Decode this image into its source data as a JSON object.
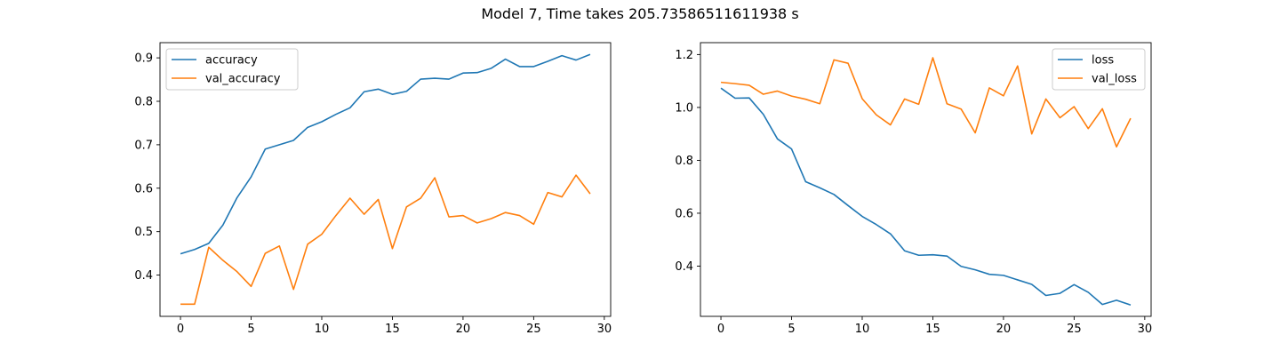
{
  "figure": {
    "title": "Model 7, Time takes 205.73586511611938 s"
  },
  "chart_data": [
    {
      "type": "line",
      "title": "",
      "xlabel": "",
      "ylabel": "",
      "xlim": [
        -1.45,
        30.45
      ],
      "ylim": [
        0.305,
        0.935
      ],
      "xticks": [
        0,
        5,
        10,
        15,
        20,
        25,
        30
      ],
      "yticks": [
        0.4,
        0.5,
        0.6,
        0.7,
        0.8,
        0.9
      ],
      "legend": "top-left",
      "grid": false,
      "x": [
        0,
        1,
        2,
        3,
        4,
        5,
        6,
        7,
        8,
        9,
        10,
        11,
        12,
        13,
        14,
        15,
        16,
        17,
        18,
        19,
        20,
        21,
        22,
        23,
        24,
        25,
        26,
        27,
        28,
        29
      ],
      "series": [
        {
          "name": "accuracy",
          "color": "#1f77b4",
          "values": [
            0.449,
            0.459,
            0.473,
            0.515,
            0.578,
            0.626,
            0.69,
            0.7,
            0.71,
            0.74,
            0.753,
            0.77,
            0.785,
            0.822,
            0.828,
            0.816,
            0.823,
            0.851,
            0.853,
            0.851,
            0.865,
            0.866,
            0.876,
            0.897,
            0.88,
            0.88,
            0.892,
            0.905,
            0.895,
            0.908
          ]
        },
        {
          "name": "val_accuracy",
          "color": "#ff7f0e",
          "values": [
            0.333,
            0.333,
            0.464,
            0.434,
            0.408,
            0.374,
            0.45,
            0.467,
            0.367,
            0.471,
            0.494,
            0.537,
            0.577,
            0.54,
            0.574,
            0.461,
            0.557,
            0.577,
            0.624,
            0.534,
            0.537,
            0.52,
            0.53,
            0.544,
            0.537,
            0.517,
            0.59,
            0.58,
            0.63,
            0.587
          ]
        }
      ]
    },
    {
      "type": "line",
      "title": "",
      "xlabel": "",
      "ylabel": "",
      "xlim": [
        -1.45,
        30.45
      ],
      "ylim": [
        0.21,
        1.245
      ],
      "xticks": [
        0,
        5,
        10,
        15,
        20,
        25,
        30
      ],
      "yticks": [
        0.4,
        0.6,
        0.8,
        1.0,
        1.2
      ],
      "legend": "top-right",
      "grid": false,
      "x": [
        0,
        1,
        2,
        3,
        4,
        5,
        6,
        7,
        8,
        9,
        10,
        11,
        12,
        13,
        14,
        15,
        16,
        17,
        18,
        19,
        20,
        21,
        22,
        23,
        24,
        25,
        26,
        27,
        28,
        29
      ],
      "series": [
        {
          "name": "loss",
          "color": "#1f77b4",
          "values": [
            1.073,
            1.035,
            1.036,
            0.974,
            0.881,
            0.843,
            0.719,
            0.696,
            0.671,
            0.629,
            0.588,
            0.557,
            0.522,
            0.458,
            0.441,
            0.443,
            0.438,
            0.399,
            0.386,
            0.369,
            0.365,
            0.348,
            0.331,
            0.289,
            0.297,
            0.33,
            0.301,
            0.255,
            0.271,
            0.253
          ]
        },
        {
          "name": "val_loss",
          "color": "#ff7f0e",
          "values": [
            1.095,
            1.09,
            1.084,
            1.05,
            1.062,
            1.043,
            1.031,
            1.014,
            1.18,
            1.167,
            1.033,
            0.972,
            0.934,
            1.032,
            1.012,
            1.188,
            1.014,
            0.994,
            0.904,
            1.074,
            1.044,
            1.157,
            0.9,
            1.032,
            0.961,
            1.003,
            0.92,
            0.995,
            0.851,
            0.959
          ]
        }
      ]
    }
  ]
}
